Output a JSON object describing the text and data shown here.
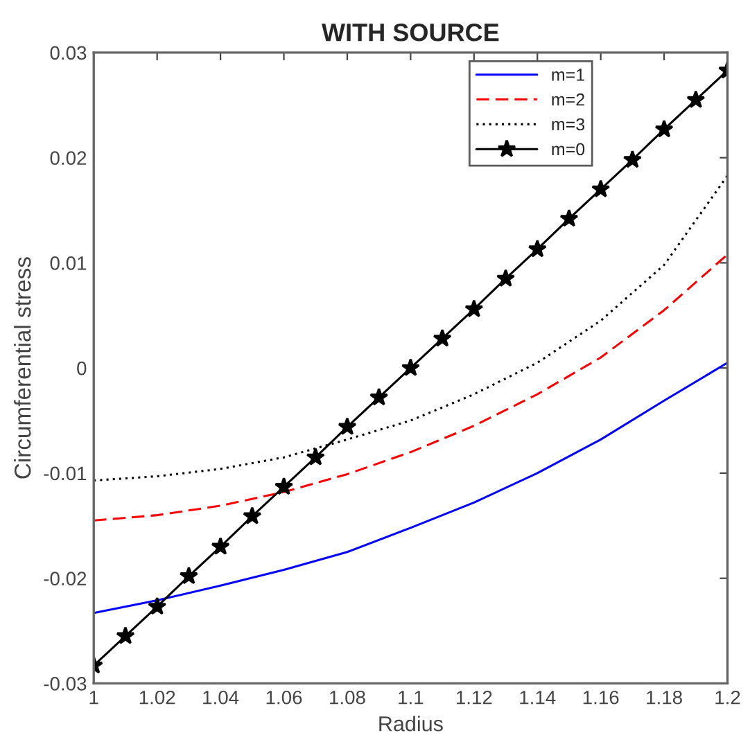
{
  "chart_data": {
    "type": "line",
    "title": "WITH SOURCE",
    "xlabel": "Radius",
    "ylabel": "Circumferential stress",
    "xlim": [
      1,
      1.2
    ],
    "xticks": [
      1,
      1.02,
      1.04,
      1.06,
      1.08,
      1.1,
      1.12,
      1.14,
      1.16,
      1.18,
      1.2
    ],
    "ylim": [
      -0.03,
      0.03
    ],
    "yticks": [
      -0.03,
      -0.02,
      -0.01,
      0,
      0.01,
      0.02,
      0.03
    ],
    "grid": false,
    "legend": "top right",
    "series": [
      {
        "name": "m=1",
        "color": "#0000ff",
        "line_style": "solid",
        "marker": "none",
        "x": [
          1,
          1.02,
          1.04,
          1.06,
          1.08,
          1.1,
          1.12,
          1.14,
          1.16,
          1.18,
          1.2
        ],
        "values": [
          -0.0233,
          -0.0221,
          -0.0207,
          -0.0192,
          -0.0175,
          -0.0152,
          -0.0128,
          -0.01,
          -0.0068,
          -0.0031,
          0.0005
        ]
      },
      {
        "name": "m=2",
        "color": "#ff0000",
        "line_style": "dashed",
        "marker": "none",
        "x": [
          1,
          1.02,
          1.04,
          1.06,
          1.08,
          1.1,
          1.12,
          1.14,
          1.16,
          1.18,
          1.2
        ],
        "values": [
          -0.0145,
          -0.014,
          -0.0131,
          -0.0118,
          -0.0101,
          -0.008,
          -0.0055,
          -0.0025,
          0.001,
          0.0055,
          0.0108
        ]
      },
      {
        "name": "m=3",
        "color": "#000000",
        "line_style": "dotted",
        "marker": "none",
        "x": [
          1,
          1.02,
          1.04,
          1.06,
          1.08,
          1.1,
          1.12,
          1.14,
          1.16,
          1.18,
          1.2
        ],
        "values": [
          -0.0107,
          -0.0103,
          -0.0096,
          -0.0085,
          -0.0068,
          -0.005,
          -0.0025,
          0.0005,
          0.0045,
          0.0098,
          0.0183
        ]
      },
      {
        "name": "m=0",
        "color": "#000000",
        "line_style": "solid",
        "marker": "star",
        "x": [
          1,
          1.01,
          1.02,
          1.03,
          1.04,
          1.05,
          1.06,
          1.07,
          1.08,
          1.09,
          1.1,
          1.11,
          1.12,
          1.13,
          1.14,
          1.15,
          1.16,
          1.17,
          1.18,
          1.19,
          1.2
        ],
        "values": [
          -0.0283,
          -0.0255,
          -0.0227,
          -0.0198,
          -0.017,
          -0.0141,
          -0.0113,
          -0.0085,
          -0.0056,
          -0.0028,
          0,
          0.0028,
          0.0056,
          0.0085,
          0.0113,
          0.0142,
          0.017,
          0.0198,
          0.0227,
          0.0255,
          0.0283
        ]
      }
    ]
  }
}
